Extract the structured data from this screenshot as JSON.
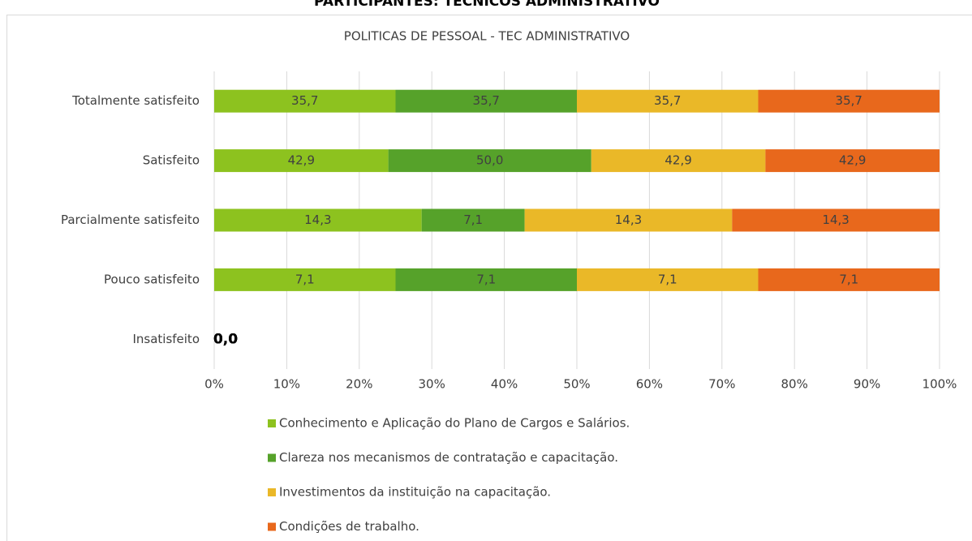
{
  "heading": "PARTICIPANTES: TÉCNICOS ADMINISTRATIVO",
  "chart_data": {
    "type": "bar",
    "orientation": "horizontal",
    "stacking": "percent",
    "title": "POLITICAS DE PESSOAL - TEC ADMINISTRATIVO",
    "categories": [
      "Totalmente satisfeito",
      "Satisfeito",
      "Parcialmente satisfeito",
      "Pouco satisfeito",
      "Insatisfeito"
    ],
    "series": [
      {
        "name": "Conhecimento e Aplicação do Plano de Cargos e Salários.",
        "color": "#8dc21f",
        "values": [
          35.7,
          42.9,
          14.3,
          7.1,
          0
        ],
        "value_labels": [
          "35,7",
          "42,9",
          "14,3",
          "7,1",
          "0,0"
        ]
      },
      {
        "name": "Clareza nos mecanismos de contratação e capacitação.",
        "color": "#56a22a",
        "values": [
          35.7,
          50.0,
          7.1,
          7.1,
          0
        ],
        "value_labels": [
          "35,7",
          "50,0",
          "7,1",
          "7,1",
          "0,0"
        ]
      },
      {
        "name": "Investimentos da instituição na capacitação.",
        "color": "#eab828",
        "values": [
          35.7,
          42.9,
          14.3,
          7.1,
          0
        ],
        "value_labels": [
          "35,7",
          "42,9",
          "14,3",
          "7,1",
          "0,0"
        ]
      },
      {
        "name": "Condições de trabalho.",
        "color": "#e8681c",
        "values": [
          35.7,
          42.9,
          14.3,
          7.1,
          0
        ],
        "value_labels": [
          "35,7",
          "42,9",
          "14,3",
          "7,1",
          "0,0"
        ]
      }
    ],
    "xlim": [
      0,
      100
    ],
    "xticks": [
      {
        "value": 0,
        "label": "0%"
      },
      {
        "value": 10,
        "label": "10%"
      },
      {
        "value": 20,
        "label": "20%"
      },
      {
        "value": 30,
        "label": "30%"
      },
      {
        "value": 40,
        "label": "40%"
      },
      {
        "value": 50,
        "label": "50%"
      },
      {
        "value": 60,
        "label": "60%"
      },
      {
        "value": 70,
        "label": "70%"
      },
      {
        "value": 80,
        "label": "80%"
      },
      {
        "value": 90,
        "label": "90%"
      },
      {
        "value": 100,
        "label": "100%"
      }
    ],
    "grid": true,
    "legend": "bottom"
  }
}
